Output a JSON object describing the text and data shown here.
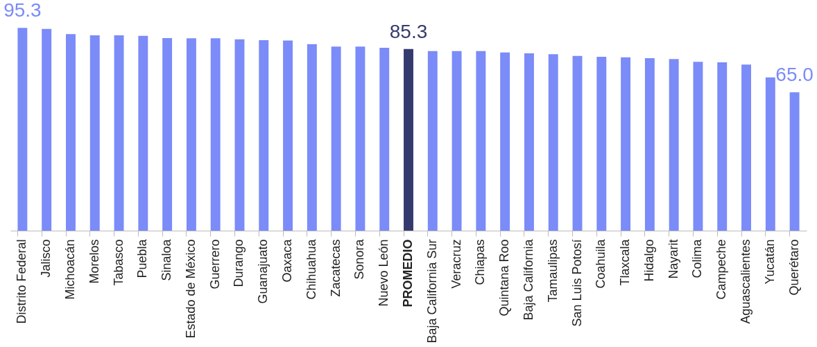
{
  "chart_data": {
    "type": "bar",
    "categories": [
      "Distrito Federal",
      "Jalisco",
      "Michoacán",
      "Morelos",
      "Tabasco",
      "Puebla",
      "Sinaloa",
      "Estado de México",
      "Guerrero",
      "Durango",
      "Guanajuato",
      "Oaxaca",
      "Chihuahua",
      "Zacatecas",
      "Sonora",
      "Nuevo León",
      "PROMEDIO",
      "Baja California Sur",
      "Veracruz",
      "Chiapas",
      "Quintana Roo",
      "Baja California",
      "Tamaulipas",
      "San Luis Potosí",
      "Coahuila",
      "Tlaxcala",
      "Hidalgo",
      "Nayarit",
      "Colima",
      "Campeche",
      "Aguascalientes",
      "Yucatán",
      "Querétaro"
    ],
    "values": [
      95.3,
      94.8,
      92.3,
      91.8,
      91.8,
      91.5,
      90.5,
      90.4,
      90.4,
      89.9,
      89.5,
      89.3,
      87.6,
      86.5,
      86.5,
      85.9,
      85.3,
      84.4,
      84.4,
      84.4,
      83.7,
      83.3,
      82.9,
      82.1,
      81.7,
      81.4,
      81.0,
      80.6,
      79.3,
      79.1,
      78.0,
      72.0,
      65.0
    ],
    "value_labels": [
      "95.3",
      null,
      null,
      null,
      null,
      null,
      null,
      null,
      null,
      null,
      null,
      null,
      null,
      null,
      null,
      null,
      "85.3",
      null,
      null,
      null,
      null,
      null,
      null,
      null,
      null,
      null,
      null,
      null,
      null,
      null,
      null,
      null,
      "65.0"
    ],
    "colors": [
      "#7b8bf8",
      "#7b8bf8",
      "#7b8bf8",
      "#7b8bf8",
      "#7b8bf8",
      "#7b8bf8",
      "#7b8bf8",
      "#7b8bf8",
      "#7b8bf8",
      "#7b8bf8",
      "#7b8bf8",
      "#7b8bf8",
      "#7b8bf8",
      "#7b8bf8",
      "#7b8bf8",
      "#7b8bf8",
      "#353a6e",
      "#7b8bf8",
      "#7b8bf8",
      "#7b8bf8",
      "#7b8bf8",
      "#7b8bf8",
      "#7b8bf8",
      "#7b8bf8",
      "#7b8bf8",
      "#7b8bf8",
      "#7b8bf8",
      "#7b8bf8",
      "#7b8bf8",
      "#7b8bf8",
      "#7b8bf8",
      "#7b8bf8",
      "#7b8bf8"
    ],
    "grid": false
  }
}
